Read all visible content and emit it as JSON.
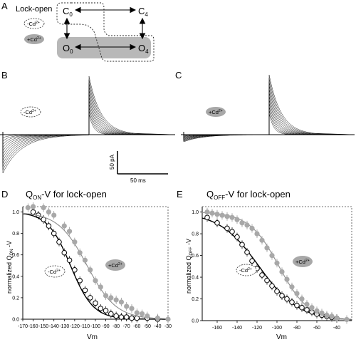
{
  "panel_letters": {
    "A": "A",
    "B": "B",
    "C": "C",
    "D": "D",
    "E": "E"
  },
  "scheme": {
    "title": "Lock-open",
    "states": {
      "c0": "C",
      "c0_sub": "0",
      "c4": "C",
      "c4_sub": "4",
      "o0": "O",
      "o0_sub": "0",
      "o4": "O",
      "o4_sub": "4"
    },
    "legend_minus": "-Cd",
    "legend_minus_sup": "2+",
    "legend_plus": "+Cd",
    "legend_plus_sup": "2+"
  },
  "traces": {
    "b_label": "-Cd",
    "b_label_sup": "2+",
    "c_label": "+Cd",
    "c_label_sup": "2+",
    "scale_y": "50 pA",
    "scale_x": "50 ms"
  },
  "colors": {
    "minus": "#000000",
    "plus": "#8c8c8c",
    "plus_fill": "#a8a8a8",
    "box": "#b8b8b8"
  },
  "chart_data": [
    {
      "type": "scatter",
      "title": "Q",
      "title_sub": "ON",
      "title_rest": "-V for lock-open",
      "xlabel": "Vm",
      "ylabel": "normalized Q",
      "ylabel_sub": "ON",
      "ylabel_rest": " -V",
      "xlim": [
        -170,
        -30
      ],
      "ylim": [
        0,
        1.05
      ],
      "xticks": [
        "-170",
        "-160",
        "-150",
        "-140",
        "-130",
        "-120",
        "-110",
        "-100",
        "-90",
        "-80",
        "-70",
        "-60",
        "-50",
        "-40",
        "-30"
      ],
      "yticks": [
        "0.0",
        "0.2",
        "0.4",
        "0.6",
        "0.8",
        "1.0"
      ],
      "series": [
        {
          "name": "-Cd",
          "name_sup": "2+",
          "x": [
            -160,
            -155,
            -150,
            -145,
            -140,
            -135,
            -130,
            -125,
            -120,
            -115,
            -110,
            -105,
            -100,
            -95,
            -90,
            -85,
            -80,
            -75,
            -70,
            -65,
            -60,
            -50,
            -40
          ],
          "y": [
            1.0,
            0.97,
            0.93,
            0.87,
            0.8,
            0.72,
            0.62,
            0.55,
            0.46,
            0.36,
            0.27,
            0.2,
            0.15,
            0.1,
            0.08,
            0.05,
            0.03,
            0.02,
            0.02,
            0.01,
            0.01,
            0.01,
            0.0
          ],
          "fit": {
            "v_half": -124,
            "slope": 11
          }
        },
        {
          "name": "+Cd",
          "name_sup": "2+",
          "x": [
            -165,
            -160,
            -150,
            -145,
            -140,
            -130,
            -125,
            -120,
            -115,
            -110,
            -105,
            -100,
            -95,
            -90,
            -85,
            -80,
            -75,
            -70,
            -65,
            -60,
            -55,
            -50,
            -40,
            -30
          ],
          "y": [
            1.04,
            1.05,
            1.04,
            1.0,
            0.97,
            0.87,
            0.82,
            0.72,
            0.62,
            0.55,
            0.46,
            0.36,
            0.3,
            0.22,
            0.2,
            0.18,
            0.16,
            0.12,
            0.1,
            0.06,
            0.05,
            0.03,
            0.01,
            0.0
          ],
          "fit": {
            "v_half": -108,
            "slope": 14
          }
        }
      ]
    },
    {
      "type": "scatter",
      "title": "Q",
      "title_sub": "OFF",
      "title_rest": "-V for lock-open",
      "xlabel": "Vm",
      "ylabel": "normalized Q",
      "ylabel_sub": "OFF",
      "ylabel_rest": " -V",
      "xlim": [
        -175,
        -25
      ],
      "ylim": [
        0,
        1.05
      ],
      "xticks": [
        "-160",
        "-140",
        "-120",
        "-100",
        "-80",
        "-60",
        "-40"
      ],
      "yticks": [
        "0.0",
        "0.2",
        "0.4",
        "0.6",
        "0.8",
        "1.0"
      ],
      "series": [
        {
          "name": "-Cd",
          "name_sup": "2+",
          "x": [
            -170,
            -160,
            -150,
            -145,
            -140,
            -135,
            -130,
            -125,
            -120,
            -115,
            -110,
            -105,
            -100,
            -95,
            -90,
            -85,
            -80,
            -75,
            -70,
            -65,
            -60,
            -55,
            -50,
            -45,
            -40
          ],
          "y": [
            0.95,
            0.9,
            0.85,
            0.82,
            0.77,
            0.7,
            0.63,
            0.55,
            0.48,
            0.42,
            0.37,
            0.32,
            0.27,
            0.23,
            0.2,
            0.17,
            0.14,
            0.12,
            0.1,
            0.08,
            0.06,
            0.05,
            0.04,
            0.03,
            0.02
          ],
          "fit": {
            "v_half": -118,
            "slope": 20
          }
        },
        {
          "name": "+Cd",
          "name_sup": "2+",
          "x": [
            -170,
            -165,
            -160,
            -155,
            -150,
            -145,
            -140,
            -135,
            -130,
            -125,
            -120,
            -115,
            -110,
            -105,
            -100,
            -95,
            -90,
            -85,
            -80,
            -75,
            -70,
            -65,
            -60,
            -55,
            -50,
            -45,
            -40,
            -30
          ],
          "y": [
            1.0,
            0.99,
            0.98,
            0.97,
            0.96,
            0.95,
            0.93,
            0.9,
            0.88,
            0.85,
            0.8,
            0.74,
            0.67,
            0.6,
            0.53,
            0.45,
            0.38,
            0.31,
            0.25,
            0.2,
            0.15,
            0.12,
            0.09,
            0.07,
            0.05,
            0.04,
            0.02,
            0.01
          ],
          "fit": {
            "v_half": -98,
            "slope": 15
          }
        }
      ]
    }
  ]
}
